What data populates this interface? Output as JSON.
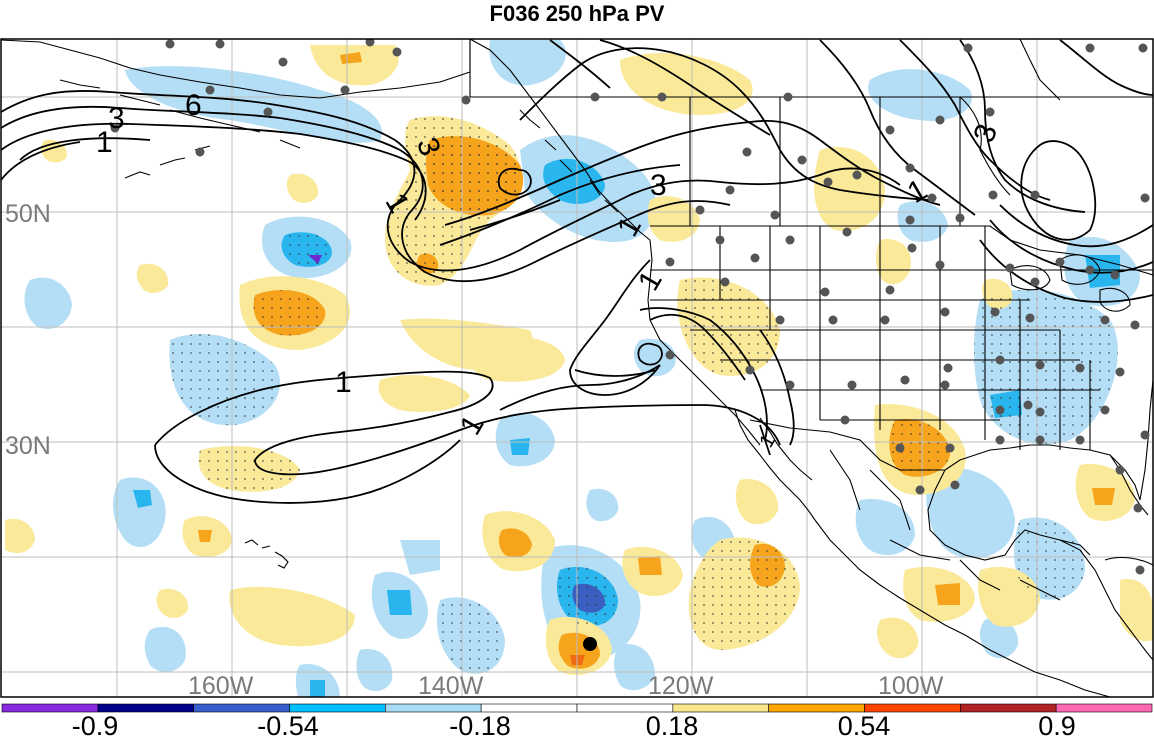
{
  "title": "F036 250 hPa PV",
  "lat_labels": [
    "50N",
    "30N"
  ],
  "lon_labels": [
    "160W",
    "140W",
    "120W",
    "100W"
  ],
  "contour_labels": [
    "3",
    "1",
    "6",
    "3",
    "1",
    "3",
    "1",
    "1",
    "3",
    "1",
    "1",
    "1",
    "1"
  ],
  "colorbar": {
    "tick_labels": [
      "-0.9",
      "-0.54",
      "-0.18",
      "0.18",
      "0.54",
      "0.9"
    ],
    "colors": [
      "#8a2be2",
      "#00008b",
      "#3a5fcd",
      "#00bfff",
      "#a8dcf5",
      "#ffffff",
      "#ffffff",
      "#f8e58c",
      "#ffa500",
      "#ff4500",
      "#b22222",
      "#ff69b4"
    ]
  },
  "shading_colors": {
    "neg_light": "#b4def5",
    "neg_mid": "#29b6ee",
    "neg_dark": "#3b5fc0",
    "neg_deep": "#6a2ad0",
    "pos_light": "#fbe99a",
    "pos_mid": "#f7a41d",
    "pos_dark": "#f06a10"
  },
  "marker_colors": {
    "station_dot": "#555555",
    "storm_dot": "#000000"
  }
}
